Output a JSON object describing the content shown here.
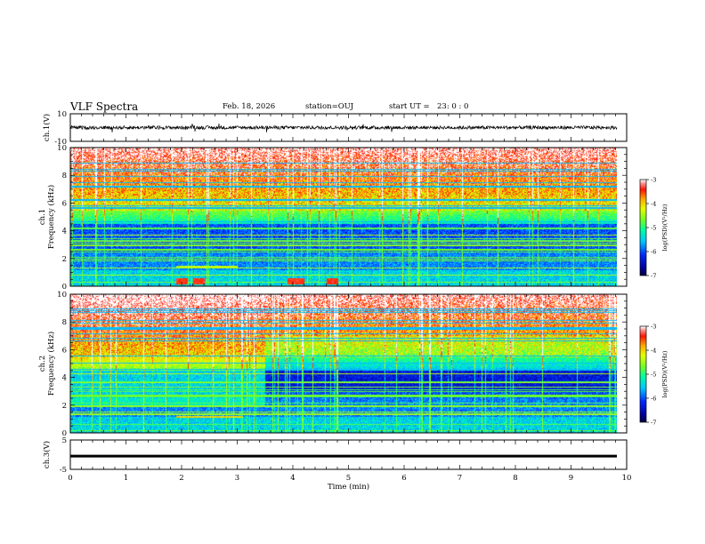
{
  "header": {
    "title": "VLF Spectra",
    "date": "Feb. 18, 2026",
    "station": "station=OUJ",
    "start_label": "start  UT =",
    "start_value": "23: 0  : 0"
  },
  "chart_data": [
    {
      "id": "ch1-waveform",
      "type": "line",
      "ylabel": "ch.1(V)",
      "yticks": [
        "10",
        "-10"
      ],
      "ylim": [
        -10,
        10
      ],
      "xlim": [
        0,
        10
      ],
      "data_end_min": 9.83,
      "baseline_v": 0.0,
      "noise_amplitude_v": 2.5,
      "color": "#000000"
    },
    {
      "id": "ch1-spectrogram",
      "type": "heatmap",
      "ylabel": "ch.1\nFrequency  (kHz)",
      "yticks": [
        "0",
        "2",
        "4",
        "6",
        "8",
        "10"
      ],
      "ylim": [
        0,
        10
      ],
      "xlim": [
        0,
        10
      ],
      "data_end_min": 9.83,
      "colorbar": {
        "label": "log(PSD)(V²/Hz)",
        "ticks": [
          "-3",
          "-4",
          "-5",
          "-6",
          "-7"
        ],
        "range": [
          -7,
          -3
        ]
      },
      "colormap": [
        "#000080",
        "#0000ff",
        "#00c0ff",
        "#00ff80",
        "#80ff00",
        "#ffff00",
        "#ff8000",
        "#ff0000",
        "#ffffff"
      ]
    },
    {
      "id": "ch2-spectrogram",
      "type": "heatmap",
      "ylabel": "ch.2\nFrequency  (kHz)",
      "yticks": [
        "0",
        "2",
        "4",
        "6",
        "8",
        "10"
      ],
      "ylim": [
        0,
        10
      ],
      "xlim": [
        0,
        10
      ],
      "data_end_min": 9.83,
      "regime_change_min": 3.5,
      "colorbar": {
        "label": "log(PSD)(V²/Hz)",
        "ticks": [
          "-3",
          "-4",
          "-5",
          "-6",
          "-7"
        ],
        "range": [
          -7,
          -3
        ]
      },
      "colormap": [
        "#000080",
        "#0000ff",
        "#00c0ff",
        "#00ff80",
        "#80ff00",
        "#ffff00",
        "#ff8000",
        "#ff0000",
        "#ffffff"
      ]
    },
    {
      "id": "ch3-waveform",
      "type": "line",
      "ylabel": "ch.3(V)",
      "yticks": [
        "5",
        "-5"
      ],
      "ylim": [
        -5,
        5
      ],
      "xlim": [
        0,
        10
      ],
      "data_end_min": 9.83,
      "baseline_v": -0.5,
      "color": "#000000"
    }
  ],
  "xaxis": {
    "label": "Time  (min)",
    "ticks": [
      "0",
      "1",
      "2",
      "3",
      "4",
      "5",
      "6",
      "7",
      "8",
      "9",
      "10"
    ]
  }
}
